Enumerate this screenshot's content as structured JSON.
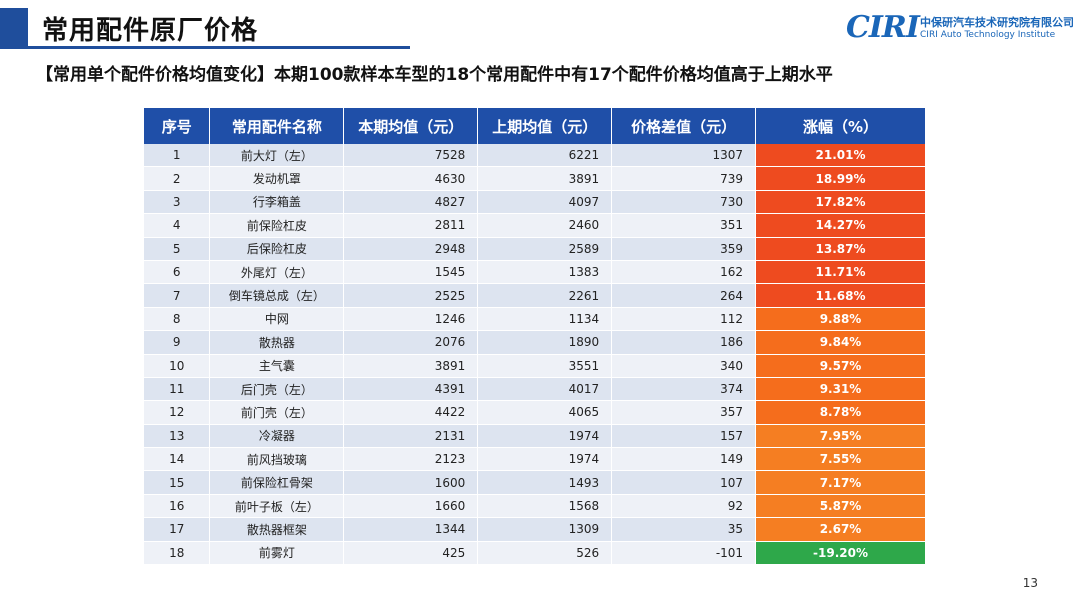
{
  "page": {
    "title": "常用配件原厂价格",
    "subtitle": "【常用单个配件价格均值变化】本期100款样本车型的18个常用配件中有17个配件价格均值高于上期水平",
    "page_number": "13"
  },
  "logo": {
    "mark": "CIRI",
    "cn": "中保研汽车技术研究院有限公司",
    "en": "CIRI Auto Technology Institute"
  },
  "colors": {
    "brand_blue": "#1f4e9c",
    "increase_high": "#ee4b1f",
    "increase_mid": "#f56d1c",
    "increase_low": "#f57e22",
    "decrease": "#2ea84a"
  },
  "table": {
    "headers": [
      "序号",
      "常用配件名称",
      "本期均值（元）",
      "上期均值（元）",
      "价格差值（元）",
      "涨幅（%）"
    ],
    "rows": [
      {
        "no": "1",
        "name": "前大灯（左）",
        "current": "7528",
        "previous": "6221",
        "diff": "1307",
        "change": "21.01%",
        "level": "high"
      },
      {
        "no": "2",
        "name": "发动机罩",
        "current": "4630",
        "previous": "3891",
        "diff": "739",
        "change": "18.99%",
        "level": "high"
      },
      {
        "no": "3",
        "name": "行李箱盖",
        "current": "4827",
        "previous": "4097",
        "diff": "730",
        "change": "17.82%",
        "level": "high"
      },
      {
        "no": "4",
        "name": "前保险杠皮",
        "current": "2811",
        "previous": "2460",
        "diff": "351",
        "change": "14.27%",
        "level": "high"
      },
      {
        "no": "5",
        "name": "后保险杠皮",
        "current": "2948",
        "previous": "2589",
        "diff": "359",
        "change": "13.87%",
        "level": "high"
      },
      {
        "no": "6",
        "name": "外尾灯（左）",
        "current": "1545",
        "previous": "1383",
        "diff": "162",
        "change": "11.71%",
        "level": "high"
      },
      {
        "no": "7",
        "name": "倒车镜总成（左）",
        "current": "2525",
        "previous": "2261",
        "diff": "264",
        "change": "11.68%",
        "level": "high"
      },
      {
        "no": "8",
        "name": "中网",
        "current": "1246",
        "previous": "1134",
        "diff": "112",
        "change": "9.88%",
        "level": "mid"
      },
      {
        "no": "9",
        "name": "散热器",
        "current": "2076",
        "previous": "1890",
        "diff": "186",
        "change": "9.84%",
        "level": "mid"
      },
      {
        "no": "10",
        "name": "主气囊",
        "current": "3891",
        "previous": "3551",
        "diff": "340",
        "change": "9.57%",
        "level": "mid"
      },
      {
        "no": "11",
        "name": "后门壳（左）",
        "current": "4391",
        "previous": "4017",
        "diff": "374",
        "change": "9.31%",
        "level": "mid"
      },
      {
        "no": "12",
        "name": "前门壳（左）",
        "current": "4422",
        "previous": "4065",
        "diff": "357",
        "change": "8.78%",
        "level": "mid"
      },
      {
        "no": "13",
        "name": "冷凝器",
        "current": "2131",
        "previous": "1974",
        "diff": "157",
        "change": "7.95%",
        "level": "low"
      },
      {
        "no": "14",
        "name": "前风挡玻璃",
        "current": "2123",
        "previous": "1974",
        "diff": "149",
        "change": "7.55%",
        "level": "low"
      },
      {
        "no": "15",
        "name": "前保险杠骨架",
        "current": "1600",
        "previous": "1493",
        "diff": "107",
        "change": "7.17%",
        "level": "low"
      },
      {
        "no": "16",
        "name": "前叶子板（左）",
        "current": "1660",
        "previous": "1568",
        "diff": "92",
        "change": "5.87%",
        "level": "low"
      },
      {
        "no": "17",
        "name": "散热器框架",
        "current": "1344",
        "previous": "1309",
        "diff": "35",
        "change": "2.67%",
        "level": "low"
      },
      {
        "no": "18",
        "name": "前雾灯",
        "current": "425",
        "previous": "526",
        "diff": "-101",
        "change": "-19.20%",
        "level": "down"
      }
    ]
  }
}
